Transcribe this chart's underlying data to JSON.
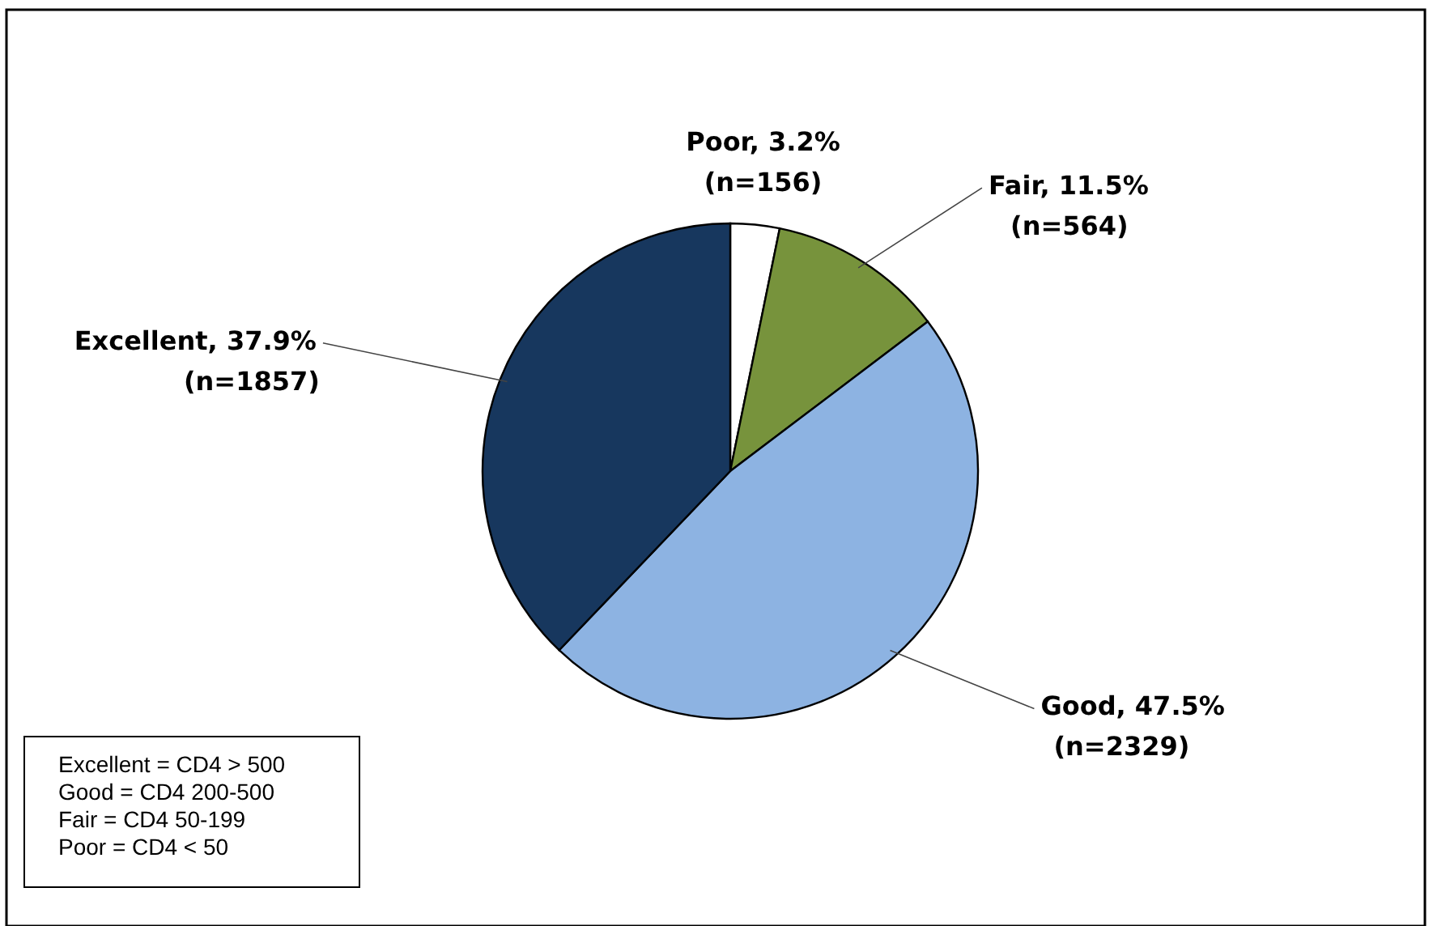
{
  "chart_data": {
    "type": "pie",
    "categories": [
      "Poor",
      "Fair",
      "Good",
      "Excellent"
    ],
    "values": [
      3.2,
      11.5,
      47.5,
      37.9
    ],
    "colors": [
      "#ffffff",
      "#77933c",
      "#8db3e2",
      "#17375e"
    ],
    "value_labels": [
      "3.2%",
      "11.5%",
      "47.5%",
      "37.9%"
    ],
    "annotations": [
      {
        "text": "(n=156)",
        "x": "Poor"
      },
      {
        "text": "(n=564)",
        "x": "Fair"
      },
      {
        "text": "(n=2329)",
        "x": "Good"
      },
      {
        "text": "(n=1857)",
        "x": "Excellent"
      },
      "Excellent = CD4 > 500",
      "Good = CD4 200-500",
      "Fair = CD4 50-199",
      "Poor = CD4 < 50"
    ]
  }
}
